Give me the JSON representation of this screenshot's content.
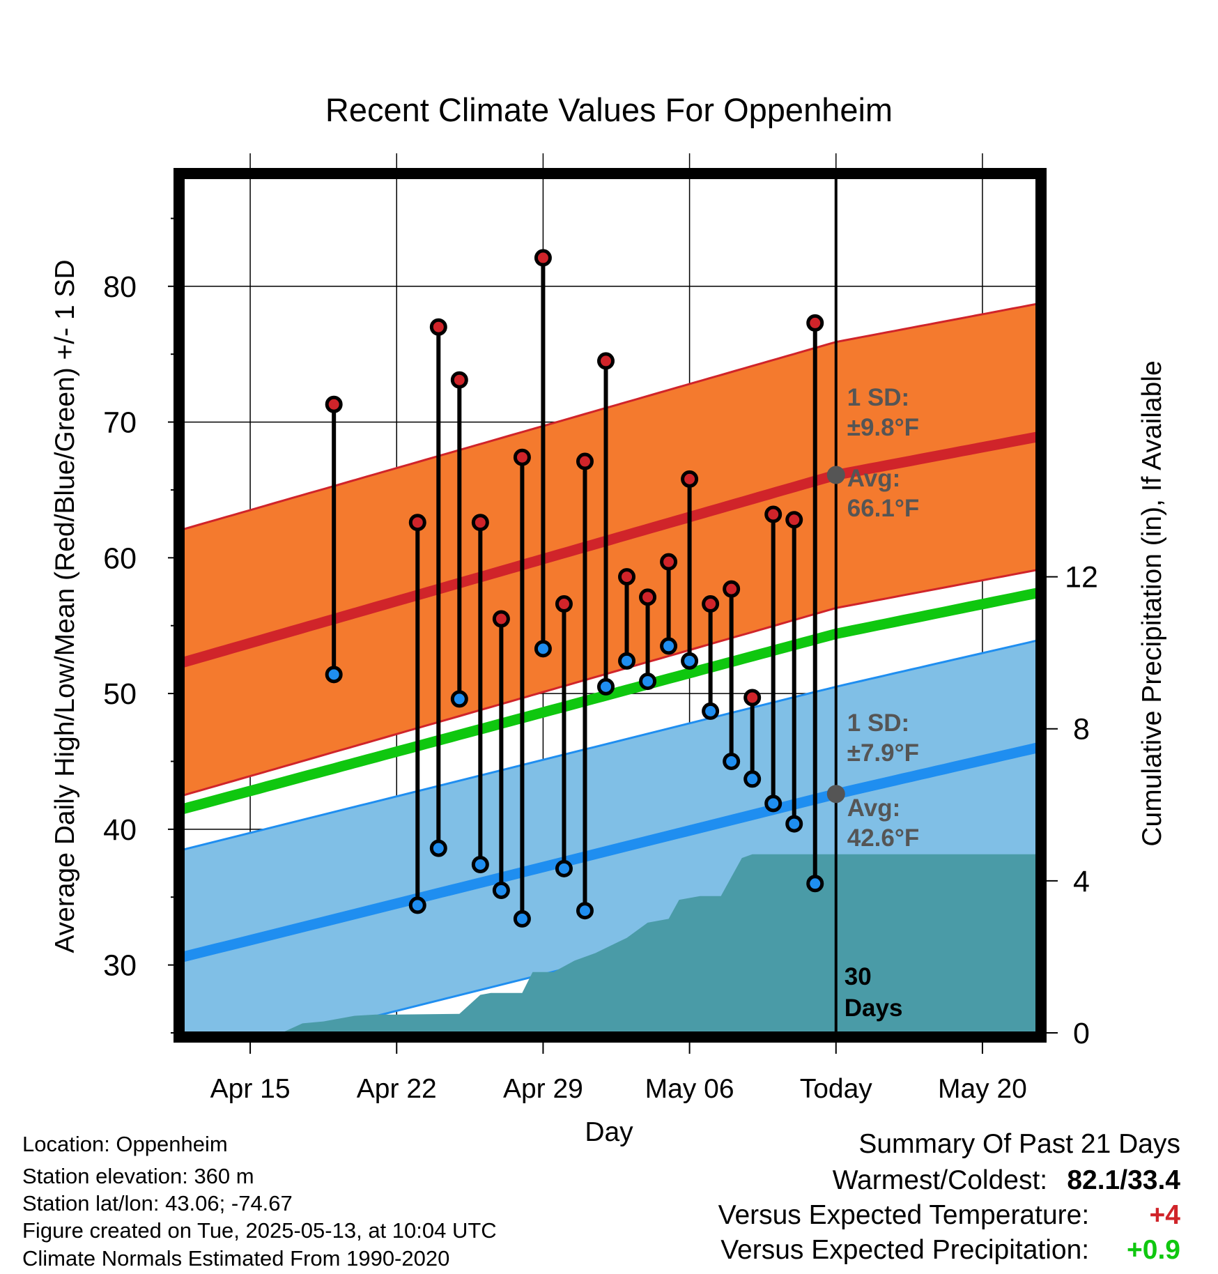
{
  "chart_data": {
    "type": "line",
    "title": "Recent Climate Values For Oppenheim",
    "xlabel": "Day",
    "ylabel": "Average Daily High/Low/Mean (Red/Blue/Green) +/- 1 SD",
    "y2label": "Cumulative Precipitation (in), If Available",
    "x_ticks": [
      "Apr 15",
      "Apr 22",
      "Apr 29",
      "May 06",
      "Today",
      "May 20"
    ],
    "x_tick_offsets_days": [
      -28,
      -21,
      -14,
      -7,
      0,
      7
    ],
    "xlim_days": [
      -31.2,
      9.6
    ],
    "ylim": [
      25,
      88
    ],
    "y_ticks": [
      30,
      40,
      50,
      60,
      70,
      80
    ],
    "y2lim": [
      0,
      22.5
    ],
    "y2_ticks": [
      0,
      4,
      8,
      12
    ],
    "grid": true,
    "normals": {
      "high_avg": {
        "x_days": [
          -31.2,
          0,
          9.6
        ],
        "values": [
          52.3,
          66.1,
          68.9
        ]
      },
      "high_sd": 9.8,
      "low_avg": {
        "x_days": [
          -31.2,
          0,
          9.6
        ],
        "values": [
          30.6,
          42.6,
          46.0
        ]
      },
      "low_sd": 7.9,
      "mean_avg": {
        "x_days": [
          -31.2,
          0,
          9.6
        ],
        "values": [
          41.5,
          54.4,
          57.4
        ]
      }
    },
    "daily": {
      "x_days": [
        -24,
        -20,
        -19,
        -18,
        -17,
        -16,
        -15,
        -14,
        -13,
        -12,
        -11,
        -10,
        -9,
        -8,
        -7,
        -6,
        -5,
        -4,
        -3,
        -2,
        -1
      ],
      "high": [
        71.3,
        62.6,
        77.0,
        73.1,
        62.6,
        55.5,
        67.4,
        82.1,
        56.6,
        67.1,
        74.5,
        58.6,
        57.1,
        59.7,
        65.8,
        56.6,
        57.7,
        49.7,
        63.2,
        62.8,
        77.3
      ],
      "low": [
        51.4,
        34.4,
        38.6,
        49.6,
        37.4,
        35.5,
        33.4,
        53.3,
        37.1,
        34.0,
        50.5,
        52.4,
        50.9,
        53.5,
        52.4,
        48.7,
        45.0,
        43.7,
        41.9,
        40.4,
        36.0
      ]
    },
    "precip": {
      "x_days": [
        -31.2,
        -26.5,
        -25.5,
        -24.5,
        -23.0,
        -22.0,
        -21.0,
        -18.0,
        -17.0,
        -16.5,
        -15.0,
        -14.5,
        -13.5,
        -12.5,
        -11.5,
        -10.0,
        -9.0,
        -8.0,
        -7.5,
        -6.5,
        -5.5,
        -4.5,
        -4.0,
        9.6
      ],
      "values": [
        0,
        0,
        0.25,
        0.3,
        0.45,
        0.48,
        0.48,
        0.5,
        1.0,
        1.05,
        1.05,
        1.6,
        1.6,
        1.9,
        2.1,
        2.5,
        2.9,
        3.0,
        3.5,
        3.6,
        3.6,
        4.6,
        4.7,
        4.7
      ]
    },
    "annotations": {
      "high_sd_label": "1 SD:",
      "high_sd_value": "±9.8°F",
      "high_avg_label": "Avg:",
      "high_avg_value": "66.1°F",
      "low_sd_label": "1 SD:",
      "low_sd_value": "±7.9°F",
      "low_avg_label": "Avg:",
      "low_avg_value": "42.6°F",
      "window_line1": "30",
      "window_line2": "Days"
    },
    "colors": {
      "high_band": "#f47a2e",
      "high_line": "#d0242a",
      "low_band": "#80bfe6",
      "low_line": "#1f8ef0",
      "mean_line": "#0fc70f",
      "precip": "#4a9ba7",
      "high_dot": "#d0242a",
      "low_dot": "#1f8ef0",
      "annotation": "#555555"
    }
  },
  "info": {
    "location": "Location: Oppenheim",
    "elevation": "Station elevation: 360 m",
    "latlon": "Station lat/lon: 43.06; -74.67",
    "created": "Figure created on Tue, 2025-05-13, at 10:04 UTC",
    "normals": "Climate Normals Estimated From 1990-2020"
  },
  "summary": {
    "title": "Summary Of Past 21 Days",
    "warmest_label": "Warmest/Coldest:",
    "warmest_value": "82.1/33.4",
    "temp_label": "Versus Expected Temperature:",
    "temp_value": "+4",
    "temp_color": "#d0242a",
    "precip_label": "Versus Expected Precipitation:",
    "precip_value": "+0.9",
    "precip_color": "#0fc70f"
  }
}
